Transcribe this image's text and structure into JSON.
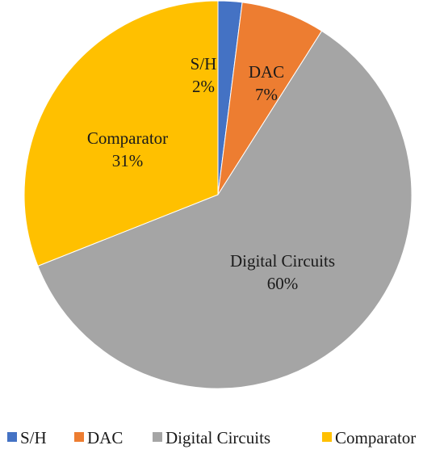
{
  "chart_data": {
    "type": "pie",
    "title": "",
    "categories": [
      "S/H",
      "DAC",
      "Digital Circuits",
      "Comparator"
    ],
    "values": [
      2,
      7,
      60,
      31
    ],
    "value_labels": [
      "2%",
      "7%",
      "60%",
      "31%"
    ],
    "colors": [
      "#4472C4",
      "#ED7D31",
      "#A5A5A5",
      "#FFC000"
    ],
    "legend": {
      "position": "bottom",
      "entries": [
        "S/H",
        "DAC",
        "Digital Circuits",
        "Comparator"
      ]
    },
    "start_angle_deg": 0,
    "direction": "clockwise"
  }
}
